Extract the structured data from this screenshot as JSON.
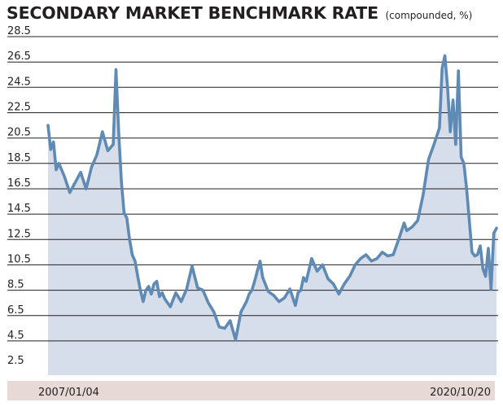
{
  "title": "SECONDARY MARKET BENCHMARK RATE",
  "subtitle": "(compounded, %)",
  "colors": {
    "line": "#5f8ab4",
    "area": "#d6ddeb",
    "xaxis_band": "#e7d9d6",
    "grid": "#231f20"
  },
  "chart_data": {
    "type": "area",
    "title": "SECONDARY MARKET BENCHMARK RATE",
    "subtitle": "(compounded, %)",
    "xlabel": "",
    "ylabel": "",
    "x_start": "2007/01/04",
    "x_end": "2020/10/20",
    "x_tick_labels": [
      "2007/01/04",
      "2020/10/20"
    ],
    "y_tick_labels": [
      "2.5",
      "4.5",
      "6.5",
      "8.5",
      "10.5",
      "12.5",
      "14.5",
      "16.5",
      "18.5",
      "20.5",
      "22.5",
      "24.5",
      "26.5",
      "28.5"
    ],
    "ylim": [
      1.8,
      28.5
    ],
    "grid": true,
    "series": [
      {
        "x": [
          "2007-01",
          "2007-02",
          "2007-03",
          "2007-04",
          "2007-05",
          "2007-07",
          "2007-09",
          "2007-11",
          "2008-01",
          "2008-03",
          "2008-05",
          "2008-07",
          "2008-09",
          "2008-11",
          "2009-01",
          "2009-02",
          "2009-03",
          "2009-04",
          "2009-05",
          "2009-06",
          "2009-07",
          "2009-08",
          "2009-09",
          "2009-10",
          "2009-11",
          "2009-12",
          "2010-01",
          "2010-02",
          "2010-03",
          "2010-04",
          "2010-05",
          "2010-06",
          "2010-07",
          "2010-08",
          "2010-10",
          "2010-12",
          "2011-02",
          "2011-04",
          "2011-06",
          "2011-08",
          "2011-10",
          "2011-12",
          "2012-02",
          "2012-04",
          "2012-06",
          "2012-08",
          "2012-10",
          "2012-12",
          "2013-02",
          "2013-03",
          "2013-04",
          "2013-05",
          "2013-06",
          "2013-07",
          "2013-08",
          "2013-10",
          "2013-12",
          "2014-02",
          "2014-04",
          "2014-06",
          "2014-08",
          "2014-09",
          "2014-10",
          "2014-11",
          "2014-12",
          "2015-02",
          "2015-04",
          "2015-06",
          "2015-08",
          "2015-10",
          "2015-12",
          "2016-02",
          "2016-04",
          "2016-06",
          "2016-08",
          "2016-10",
          "2016-12",
          "2017-02",
          "2017-04",
          "2017-06",
          "2017-08",
          "2017-10",
          "2017-12",
          "2018-01",
          "2018-03",
          "2018-05",
          "2018-07",
          "2018-09",
          "2018-11",
          "2019-01",
          "2019-02",
          "2019-03",
          "2019-04",
          "2019-05",
          "2019-06",
          "2019-07",
          "2019-08",
          "2019-09",
          "2019-10",
          "2019-11",
          "2019-12",
          "2020-01",
          "2020-02",
          "2020-03",
          "2020-04",
          "2020-05",
          "2020-06",
          "2020-07",
          "2020-08",
          "2020-09",
          "2020-10"
        ],
        "values": [
          21.5,
          19.6,
          20.2,
          18.0,
          18.5,
          17.5,
          16.2,
          17.0,
          17.8,
          16.5,
          18.2,
          19.2,
          21.0,
          19.5,
          20.0,
          25.9,
          21.0,
          17.0,
          14.6,
          14.2,
          12.5,
          11.3,
          10.8,
          9.6,
          8.5,
          7.6,
          8.5,
          8.8,
          8.2,
          9.0,
          9.2,
          8.0,
          8.3,
          7.8,
          7.2,
          8.3,
          7.6,
          8.6,
          10.4,
          8.7,
          8.5,
          7.5,
          6.8,
          5.6,
          5.5,
          6.1,
          4.6,
          6.8,
          7.6,
          8.2,
          8.5,
          9.2,
          10.0,
          10.8,
          9.5,
          8.4,
          8.1,
          7.6,
          7.9,
          8.6,
          7.3,
          8.3,
          8.5,
          9.5,
          9.2,
          11.0,
          10.0,
          10.5,
          9.4,
          9.0,
          8.2,
          9.0,
          9.6,
          10.5,
          11.0,
          11.3,
          10.8,
          11.0,
          11.5,
          11.2,
          11.3,
          12.5,
          13.8,
          13.2,
          13.5,
          14.0,
          16.0,
          18.8,
          20.0,
          21.3,
          26.0,
          27.0,
          24.5,
          21.0,
          23.5,
          20.0,
          25.8,
          19.0,
          18.5,
          16.5,
          14.0,
          11.5,
          11.2,
          11.3,
          12.0,
          10.2,
          9.6,
          11.8,
          8.6,
          13.0,
          13.4
        ],
        "line_color": "#5f8ab4",
        "fill_color": "#d6ddeb"
      }
    ]
  }
}
